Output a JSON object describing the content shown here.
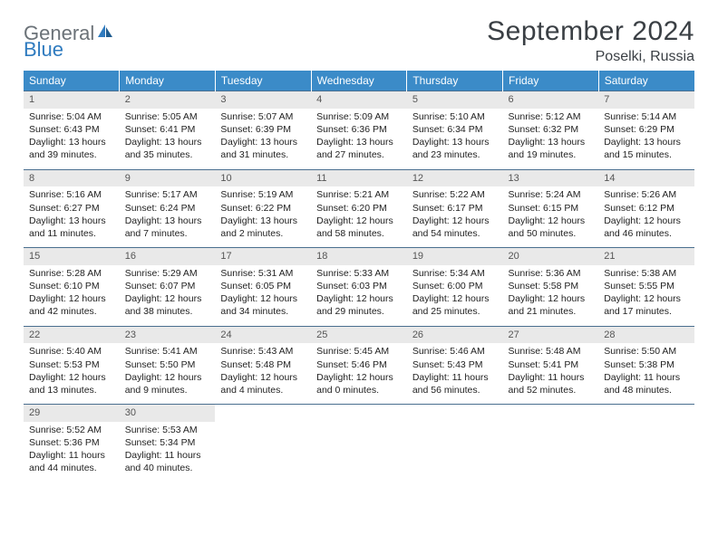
{
  "logo": {
    "text1": "General",
    "text2": "Blue",
    "icon_color": "#2f7bbf",
    "text1_color": "#6b7278"
  },
  "title": "September 2024",
  "location": "Poselki, Russia",
  "header_bg": "#3b8bc8",
  "daynum_bg": "#e9e9e9",
  "border_color": "#4a6f8f",
  "day_headers": [
    "Sunday",
    "Monday",
    "Tuesday",
    "Wednesday",
    "Thursday",
    "Friday",
    "Saturday"
  ],
  "weeks": [
    [
      {
        "n": "1",
        "sr": "Sunrise: 5:04 AM",
        "ss": "Sunset: 6:43 PM",
        "dl": "Daylight: 13 hours and 39 minutes."
      },
      {
        "n": "2",
        "sr": "Sunrise: 5:05 AM",
        "ss": "Sunset: 6:41 PM",
        "dl": "Daylight: 13 hours and 35 minutes."
      },
      {
        "n": "3",
        "sr": "Sunrise: 5:07 AM",
        "ss": "Sunset: 6:39 PM",
        "dl": "Daylight: 13 hours and 31 minutes."
      },
      {
        "n": "4",
        "sr": "Sunrise: 5:09 AM",
        "ss": "Sunset: 6:36 PM",
        "dl": "Daylight: 13 hours and 27 minutes."
      },
      {
        "n": "5",
        "sr": "Sunrise: 5:10 AM",
        "ss": "Sunset: 6:34 PM",
        "dl": "Daylight: 13 hours and 23 minutes."
      },
      {
        "n": "6",
        "sr": "Sunrise: 5:12 AM",
        "ss": "Sunset: 6:32 PM",
        "dl": "Daylight: 13 hours and 19 minutes."
      },
      {
        "n": "7",
        "sr": "Sunrise: 5:14 AM",
        "ss": "Sunset: 6:29 PM",
        "dl": "Daylight: 13 hours and 15 minutes."
      }
    ],
    [
      {
        "n": "8",
        "sr": "Sunrise: 5:16 AM",
        "ss": "Sunset: 6:27 PM",
        "dl": "Daylight: 13 hours and 11 minutes."
      },
      {
        "n": "9",
        "sr": "Sunrise: 5:17 AM",
        "ss": "Sunset: 6:24 PM",
        "dl": "Daylight: 13 hours and 7 minutes."
      },
      {
        "n": "10",
        "sr": "Sunrise: 5:19 AM",
        "ss": "Sunset: 6:22 PM",
        "dl": "Daylight: 13 hours and 2 minutes."
      },
      {
        "n": "11",
        "sr": "Sunrise: 5:21 AM",
        "ss": "Sunset: 6:20 PM",
        "dl": "Daylight: 12 hours and 58 minutes."
      },
      {
        "n": "12",
        "sr": "Sunrise: 5:22 AM",
        "ss": "Sunset: 6:17 PM",
        "dl": "Daylight: 12 hours and 54 minutes."
      },
      {
        "n": "13",
        "sr": "Sunrise: 5:24 AM",
        "ss": "Sunset: 6:15 PM",
        "dl": "Daylight: 12 hours and 50 minutes."
      },
      {
        "n": "14",
        "sr": "Sunrise: 5:26 AM",
        "ss": "Sunset: 6:12 PM",
        "dl": "Daylight: 12 hours and 46 minutes."
      }
    ],
    [
      {
        "n": "15",
        "sr": "Sunrise: 5:28 AM",
        "ss": "Sunset: 6:10 PM",
        "dl": "Daylight: 12 hours and 42 minutes."
      },
      {
        "n": "16",
        "sr": "Sunrise: 5:29 AM",
        "ss": "Sunset: 6:07 PM",
        "dl": "Daylight: 12 hours and 38 minutes."
      },
      {
        "n": "17",
        "sr": "Sunrise: 5:31 AM",
        "ss": "Sunset: 6:05 PM",
        "dl": "Daylight: 12 hours and 34 minutes."
      },
      {
        "n": "18",
        "sr": "Sunrise: 5:33 AM",
        "ss": "Sunset: 6:03 PM",
        "dl": "Daylight: 12 hours and 29 minutes."
      },
      {
        "n": "19",
        "sr": "Sunrise: 5:34 AM",
        "ss": "Sunset: 6:00 PM",
        "dl": "Daylight: 12 hours and 25 minutes."
      },
      {
        "n": "20",
        "sr": "Sunrise: 5:36 AM",
        "ss": "Sunset: 5:58 PM",
        "dl": "Daylight: 12 hours and 21 minutes."
      },
      {
        "n": "21",
        "sr": "Sunrise: 5:38 AM",
        "ss": "Sunset: 5:55 PM",
        "dl": "Daylight: 12 hours and 17 minutes."
      }
    ],
    [
      {
        "n": "22",
        "sr": "Sunrise: 5:40 AM",
        "ss": "Sunset: 5:53 PM",
        "dl": "Daylight: 12 hours and 13 minutes."
      },
      {
        "n": "23",
        "sr": "Sunrise: 5:41 AM",
        "ss": "Sunset: 5:50 PM",
        "dl": "Daylight: 12 hours and 9 minutes."
      },
      {
        "n": "24",
        "sr": "Sunrise: 5:43 AM",
        "ss": "Sunset: 5:48 PM",
        "dl": "Daylight: 12 hours and 4 minutes."
      },
      {
        "n": "25",
        "sr": "Sunrise: 5:45 AM",
        "ss": "Sunset: 5:46 PM",
        "dl": "Daylight: 12 hours and 0 minutes."
      },
      {
        "n": "26",
        "sr": "Sunrise: 5:46 AM",
        "ss": "Sunset: 5:43 PM",
        "dl": "Daylight: 11 hours and 56 minutes."
      },
      {
        "n": "27",
        "sr": "Sunrise: 5:48 AM",
        "ss": "Sunset: 5:41 PM",
        "dl": "Daylight: 11 hours and 52 minutes."
      },
      {
        "n": "28",
        "sr": "Sunrise: 5:50 AM",
        "ss": "Sunset: 5:38 PM",
        "dl": "Daylight: 11 hours and 48 minutes."
      }
    ],
    [
      {
        "n": "29",
        "sr": "Sunrise: 5:52 AM",
        "ss": "Sunset: 5:36 PM",
        "dl": "Daylight: 11 hours and 44 minutes."
      },
      {
        "n": "30",
        "sr": "Sunrise: 5:53 AM",
        "ss": "Sunset: 5:34 PM",
        "dl": "Daylight: 11 hours and 40 minutes."
      },
      null,
      null,
      null,
      null,
      null
    ]
  ]
}
